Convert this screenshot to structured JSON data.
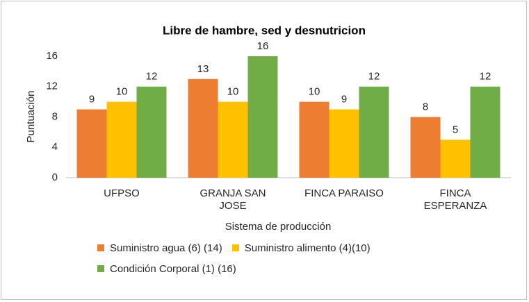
{
  "chart_data": {
    "type": "bar",
    "title": "Libre de hambre, sed y desnutricion",
    "x_label": "Sistema de producción",
    "y_label": "Puntuación",
    "categories": [
      "UFPSO",
      "GRANJA SAN JOSE",
      "FINCA PARAISO",
      "FINCA ESPERANZA"
    ],
    "series": [
      {
        "name": "Suministro agua (6) (14)",
        "color": "#ed7d31",
        "values": [
          9,
          13,
          10,
          8
        ]
      },
      {
        "name": "Suministro alimento (4)(10)",
        "color": "#ffc000",
        "values": [
          10,
          10,
          9,
          5
        ]
      },
      {
        "name": "Condición Corporal (1) (16)",
        "color": "#70ad47",
        "values": [
          12,
          16,
          12,
          12
        ]
      }
    ],
    "ylim": [
      0,
      16
    ],
    "yticks": [
      0,
      4,
      8,
      12,
      16
    ],
    "grid": false,
    "legend": "bottom"
  }
}
